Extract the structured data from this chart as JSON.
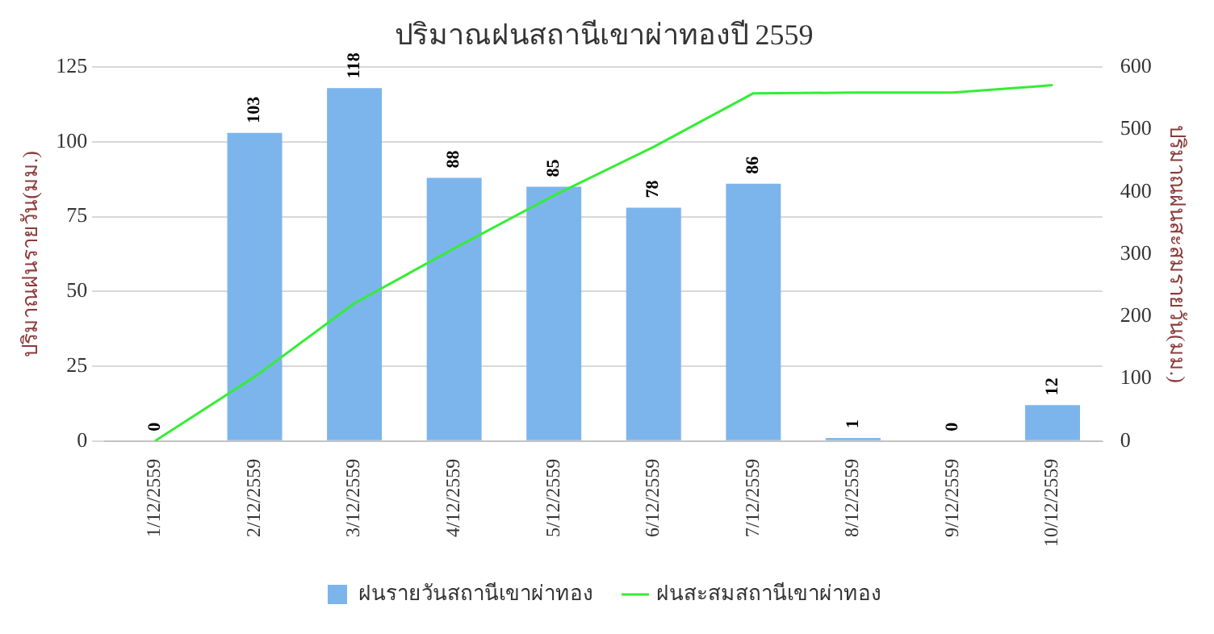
{
  "chart_data": {
    "type": "bar",
    "title": "ปริมาณฝนสถานีเขาผ่าทองปี 2559",
    "ylabel": "ปริมาณฝนรายวัน(มม.)",
    "y2label": "ปริมาณฝนสะสมรายวัน(มม.)",
    "categories": [
      "1/12/2559",
      "2/12/2559",
      "3/12/2559",
      "4/12/2559",
      "5/12/2559",
      "6/12/2559",
      "7/12/2559",
      "8/12/2559",
      "9/12/2559",
      "10/12/2559"
    ],
    "series": [
      {
        "name": "ฝนรายวันสถานีเขาผ่าทอง",
        "color": "#7cb5ec",
        "values": [
          0,
          103,
          118,
          88,
          85,
          78,
          86,
          1,
          0,
          12
        ],
        "data_labels": true
      },
      {
        "name": "ฝนสะสมสถานีเขาผ่าทอง",
        "type": "line",
        "axis": "y2",
        "color": "#33ee33",
        "values": [
          0,
          103,
          221,
          309,
          394,
          472,
          558,
          559,
          559,
          571
        ]
      }
    ],
    "ylim": [
      0,
      125
    ],
    "yticks": [
      0,
      25,
      50,
      75,
      100,
      125
    ],
    "y2lim": [
      0,
      600
    ],
    "y2ticks": [
      0,
      100,
      200,
      300,
      400,
      500,
      600
    ],
    "grid": "y",
    "legend": "bottom",
    "marker": "none"
  }
}
